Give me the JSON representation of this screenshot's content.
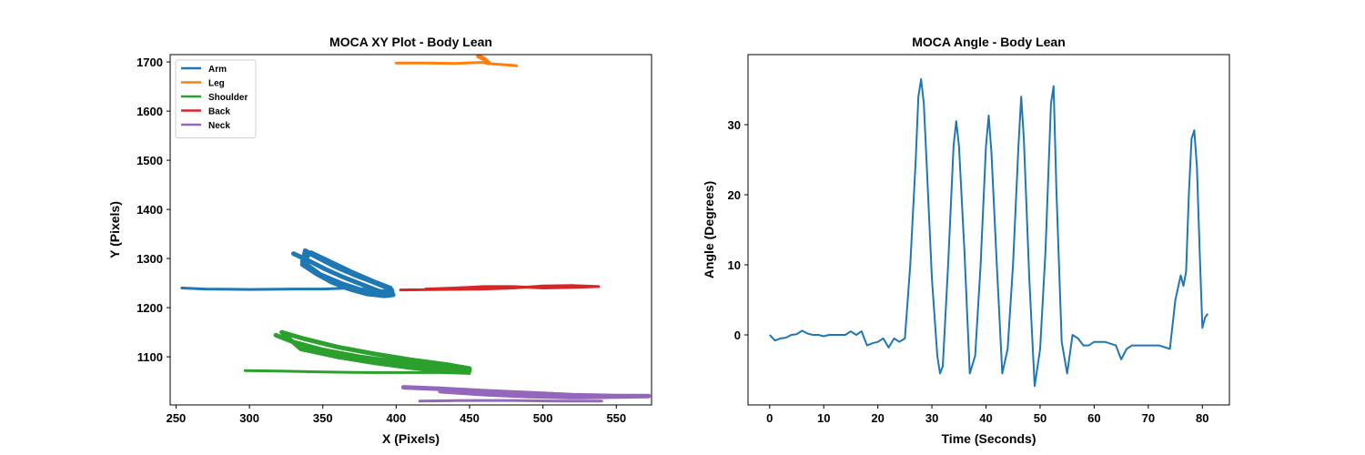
{
  "chart_data": [
    {
      "type": "line",
      "title": "MOCA XY Plot - Body Lean",
      "xlabel": "X (Pixels)",
      "ylabel": "Y (Pixels)",
      "xlim": [
        246,
        574
      ],
      "ylim": [
        1002,
        1715
      ],
      "xticks": [
        250,
        300,
        350,
        400,
        450,
        500,
        550
      ],
      "yticks": [
        1100,
        1200,
        1300,
        1400,
        1500,
        1600,
        1700
      ],
      "legend_position": "upper-left",
      "series": [
        {
          "name": "Arm",
          "color": "#1f77b4",
          "paths": [
            [
              [
                254,
                1240
              ],
              [
                270,
                1238
              ],
              [
                300,
                1237
              ],
              [
                330,
                1238
              ],
              [
                350,
                1238
              ],
              [
                370,
                1240
              ],
              [
                385,
                1236
              ],
              [
                398,
                1232
              ]
            ],
            [
              [
                330,
                1310
              ],
              [
                340,
                1296
              ],
              [
                352,
                1278
              ],
              [
                364,
                1262
              ],
              [
                376,
                1248
              ],
              [
                388,
                1234
              ],
              [
                398,
                1226
              ],
              [
                392,
                1224
              ],
              [
                380,
                1228
              ],
              [
                368,
                1238
              ],
              [
                356,
                1252
              ],
              [
                345,
                1270
              ],
              [
                336,
                1288
              ],
              [
                338,
                1316
              ],
              [
                345,
                1304
              ],
              [
                358,
                1284
              ],
              [
                372,
                1266
              ],
              [
                386,
                1250
              ],
              [
                397,
                1236
              ],
              [
                388,
                1230
              ],
              [
                376,
                1236
              ],
              [
                362,
                1250
              ],
              [
                348,
                1268
              ],
              [
                336,
                1294
              ],
              [
                342,
                1312
              ],
              [
                356,
                1292
              ],
              [
                370,
                1272
              ],
              [
                384,
                1254
              ],
              [
                396,
                1240
              ]
            ]
          ]
        },
        {
          "name": "Leg",
          "color": "#ff7f0e",
          "paths": [
            [
              [
                400,
                1698
              ],
              [
                420,
                1698
              ],
              [
                440,
                1697
              ],
              [
                458,
                1699
              ],
              [
                466,
                1696
              ],
              [
                480,
                1693
              ],
              [
                482,
                1692
              ]
            ],
            [
              [
                456,
                1712
              ],
              [
                460,
                1706
              ],
              [
                463,
                1698
              ]
            ]
          ]
        },
        {
          "name": "Shoulder",
          "color": "#2ca02c",
          "paths": [
            [
              [
                297,
                1072
              ],
              [
                320,
                1071
              ],
              [
                350,
                1069
              ],
              [
                380,
                1068
              ],
              [
                410,
                1068
              ],
              [
                430,
                1068
              ],
              [
                450,
                1066
              ]
            ],
            [
              [
                318,
                1144
              ],
              [
                330,
                1130
              ],
              [
                350,
                1114
              ],
              [
                375,
                1100
              ],
              [
                400,
                1090
              ],
              [
                425,
                1080
              ],
              [
                450,
                1072
              ],
              [
                435,
                1070
              ],
              [
                410,
                1078
              ],
              [
                385,
                1088
              ],
              [
                360,
                1100
              ],
              [
                335,
                1116
              ],
              [
                322,
                1150
              ],
              [
                338,
                1136
              ],
              [
                360,
                1120
              ],
              [
                385,
                1106
              ],
              [
                410,
                1094
              ],
              [
                435,
                1084
              ],
              [
                450,
                1076
              ]
            ]
          ]
        },
        {
          "name": "Back",
          "color": "#d62728",
          "paths": [
            [
              [
                403,
                1236
              ],
              [
                430,
                1237
              ],
              [
                460,
                1238
              ],
              [
                480,
                1240
              ],
              [
                500,
                1244
              ],
              [
                520,
                1245
              ],
              [
                538,
                1243
              ],
              [
                520,
                1241
              ],
              [
                500,
                1240
              ],
              [
                480,
                1243
              ],
              [
                460,
                1243
              ],
              [
                440,
                1240
              ],
              [
                420,
                1238
              ]
            ]
          ]
        },
        {
          "name": "Neck",
          "color": "#9467bd",
          "paths": [
            [
              [
                416,
                1010
              ],
              [
                450,
                1011
              ],
              [
                480,
                1011
              ],
              [
                510,
                1010
              ],
              [
                540,
                1010
              ]
            ],
            [
              [
                405,
                1038
              ],
              [
                430,
                1035
              ],
              [
                460,
                1030
              ],
              [
                490,
                1026
              ],
              [
                520,
                1022
              ],
              [
                550,
                1020
              ],
              [
                572,
                1020
              ],
              [
                550,
                1019
              ],
              [
                520,
                1018
              ],
              [
                490,
                1020
              ],
              [
                460,
                1024
              ],
              [
                430,
                1030
              ]
            ]
          ]
        }
      ]
    },
    {
      "type": "line",
      "title": "MOCA Angle - Body Lean",
      "xlabel": "Time (Seconds)",
      "ylabel": "Angle (Degrees)",
      "xlim": [
        -4,
        85
      ],
      "ylim": [
        -10,
        40
      ],
      "xticks": [
        0,
        10,
        20,
        30,
        40,
        50,
        60,
        70,
        80
      ],
      "yticks": [
        0,
        10,
        20,
        30
      ],
      "series": [
        {
          "name": "",
          "color": "#1f77b4",
          "x": [
            0,
            1,
            2,
            3,
            4,
            5,
            6,
            7,
            8,
            9,
            10,
            11,
            12,
            13,
            14,
            15,
            16,
            17,
            18,
            19,
            20,
            21,
            22,
            23,
            24,
            25,
            26,
            27,
            27.5,
            28,
            28.5,
            29,
            30,
            31,
            31.5,
            32,
            33,
            34,
            34.5,
            35,
            36,
            37,
            38,
            39,
            40,
            40.5,
            41,
            42,
            43,
            44,
            45,
            46,
            46.5,
            47,
            48,
            49,
            50,
            51,
            52,
            52.5,
            53,
            54,
            55,
            56,
            57,
            58,
            59,
            60,
            62,
            64,
            65,
            66,
            67,
            68,
            70,
            72,
            74,
            75,
            76,
            76.5,
            77,
            77.5,
            78,
            78.5,
            79,
            79.5,
            80,
            80.5,
            81
          ],
          "y": [
            0,
            -0.8,
            -0.5,
            -0.4,
            0,
            0.1,
            0.6,
            0.2,
            0,
            0,
            -0.2,
            0,
            0,
            0,
            0,
            0.5,
            0,
            0.5,
            -1.5,
            -1.2,
            -1.0,
            -0.5,
            -1.8,
            -0.5,
            -1.0,
            -0.5,
            10,
            25,
            34,
            36.5,
            33,
            25,
            8,
            -3,
            -5.5,
            -4.5,
            10,
            27,
            30.5,
            27,
            12,
            -5.5,
            -3,
            10,
            27,
            31.3,
            26,
            10,
            -5.5,
            -2,
            10,
            27,
            34,
            28,
            8,
            -7.3,
            -2,
            12,
            33,
            35.5,
            21,
            -1,
            -5.5,
            0,
            -0.5,
            -1.5,
            -1.5,
            -1,
            -1,
            -1.5,
            -3.5,
            -2,
            -1.5,
            -1.5,
            -1.5,
            -1.5,
            -2,
            5,
            8.5,
            7,
            9,
            20,
            28,
            29.2,
            24,
            12,
            1,
            2.5,
            3
          ]
        }
      ]
    }
  ]
}
